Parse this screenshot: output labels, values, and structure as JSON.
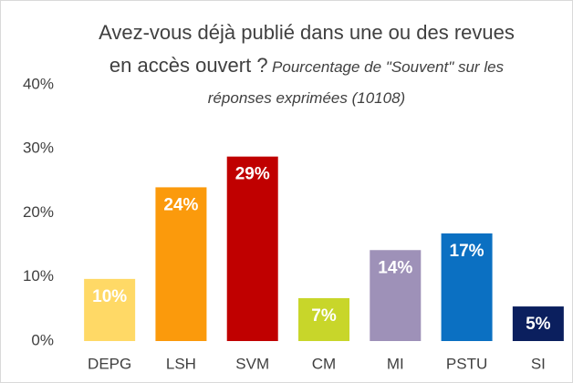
{
  "chart_data": {
    "type": "bar",
    "title": "Avez-vous déjà publié dans une ou des revues en accès ouvert ?",
    "subtitle": "Pourcentage de \"Souvent\" sur les réponses exprimées (10108)",
    "categories": [
      "DEPG",
      "LSH",
      "SVM",
      "CM",
      "MI",
      "PSTU",
      "SI"
    ],
    "values": [
      9.7,
      24,
      28.8,
      6.7,
      14.2,
      16.8,
      5.4
    ],
    "value_labels": [
      "10%",
      "24%",
      "29%",
      "7%",
      "14%",
      "17%",
      "5%"
    ],
    "colors": [
      "#ffd966",
      "#fb9a0c",
      "#c00000",
      "#c8d62a",
      "#9e91b8",
      "#0b70c2",
      "#0b1f5e"
    ],
    "ylim": [
      0,
      40
    ],
    "yticks": [
      {
        "value": 0,
        "label": "0%"
      },
      {
        "value": 10,
        "label": "10%"
      },
      {
        "value": 20,
        "label": "20%"
      },
      {
        "value": 30,
        "label": "30%"
      },
      {
        "value": 40,
        "label": "40%"
      }
    ]
  }
}
